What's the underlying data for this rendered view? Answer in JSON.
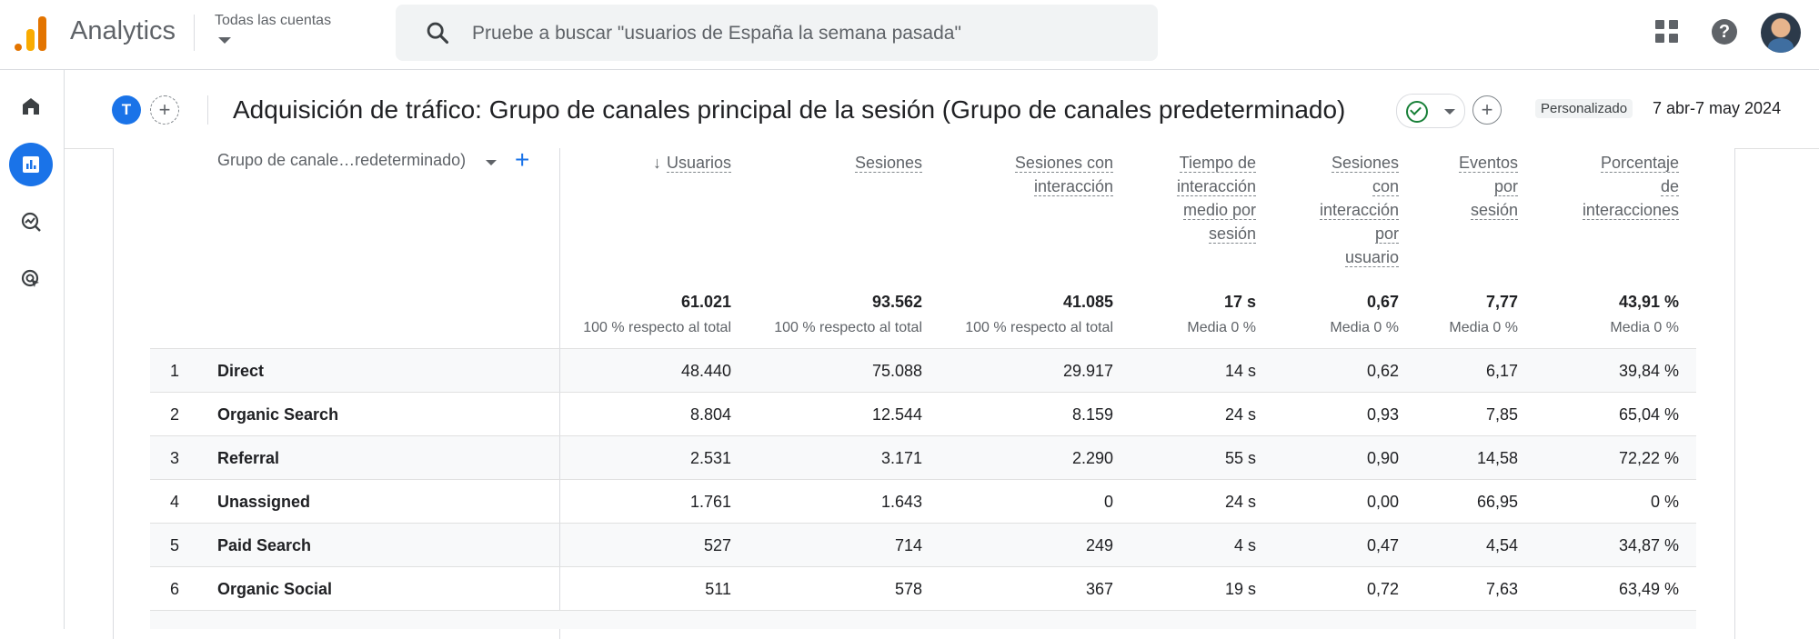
{
  "app": {
    "title": "Analytics",
    "account_label": "Todas las cuentas"
  },
  "search": {
    "placeholder": "Pruebe a buscar \"usuarios de España la semana pasada\""
  },
  "header": {
    "chip_letter": "T",
    "title": "Adquisición de tráfico: Grupo de canales principal de la sesión (Grupo de canales predeterminado)",
    "date_badge": "Personalizado",
    "date_range": "7 abr-7 may 2024"
  },
  "table": {
    "dimension_header": "Grupo de canale…redeterminado)",
    "columns": [
      {
        "lines": [
          "Usuarios"
        ],
        "total": "61.021",
        "sub": "100 % respecto al total",
        "sorted": true
      },
      {
        "lines": [
          "Sesiones"
        ],
        "total": "93.562",
        "sub": "100 % respecto al total"
      },
      {
        "lines": [
          "Sesiones con",
          "interacción"
        ],
        "total": "41.085",
        "sub": "100 % respecto al total"
      },
      {
        "lines": [
          "Tiempo de",
          "interacción",
          "medio por",
          "sesión"
        ],
        "total": "17 s",
        "sub": "Media 0 %"
      },
      {
        "lines": [
          "Sesiones",
          "con",
          "interacción",
          "por",
          "usuario"
        ],
        "total": "0,67",
        "sub": "Media 0 %"
      },
      {
        "lines": [
          "Eventos",
          "por",
          "sesión"
        ],
        "total": "7,77",
        "sub": "Media 0 %"
      },
      {
        "lines": [
          "Porcentaje",
          "de",
          "interacciones"
        ],
        "total": "43,91 %",
        "sub": "Media 0 %"
      }
    ],
    "rows": [
      {
        "n": "1",
        "label": "Direct",
        "values": [
          "48.440",
          "75.088",
          "29.917",
          "14 s",
          "0,62",
          "6,17",
          "39,84 %"
        ]
      },
      {
        "n": "2",
        "label": "Organic Search",
        "values": [
          "8.804",
          "12.544",
          "8.159",
          "24 s",
          "0,93",
          "7,85",
          "65,04 %"
        ]
      },
      {
        "n": "3",
        "label": "Referral",
        "values": [
          "2.531",
          "3.171",
          "2.290",
          "55 s",
          "0,90",
          "14,58",
          "72,22 %"
        ]
      },
      {
        "n": "4",
        "label": "Unassigned",
        "values": [
          "1.761",
          "1.643",
          "0",
          "24 s",
          "0,00",
          "66,95",
          "0 %"
        ]
      },
      {
        "n": "5",
        "label": "Paid Search",
        "values": [
          "527",
          "714",
          "249",
          "4 s",
          "0,47",
          "4,54",
          "34,87 %"
        ]
      },
      {
        "n": "6",
        "label": "Organic Social",
        "values": [
          "511",
          "578",
          "367",
          "19 s",
          "0,72",
          "7,63",
          "63,49 %"
        ]
      }
    ]
  }
}
